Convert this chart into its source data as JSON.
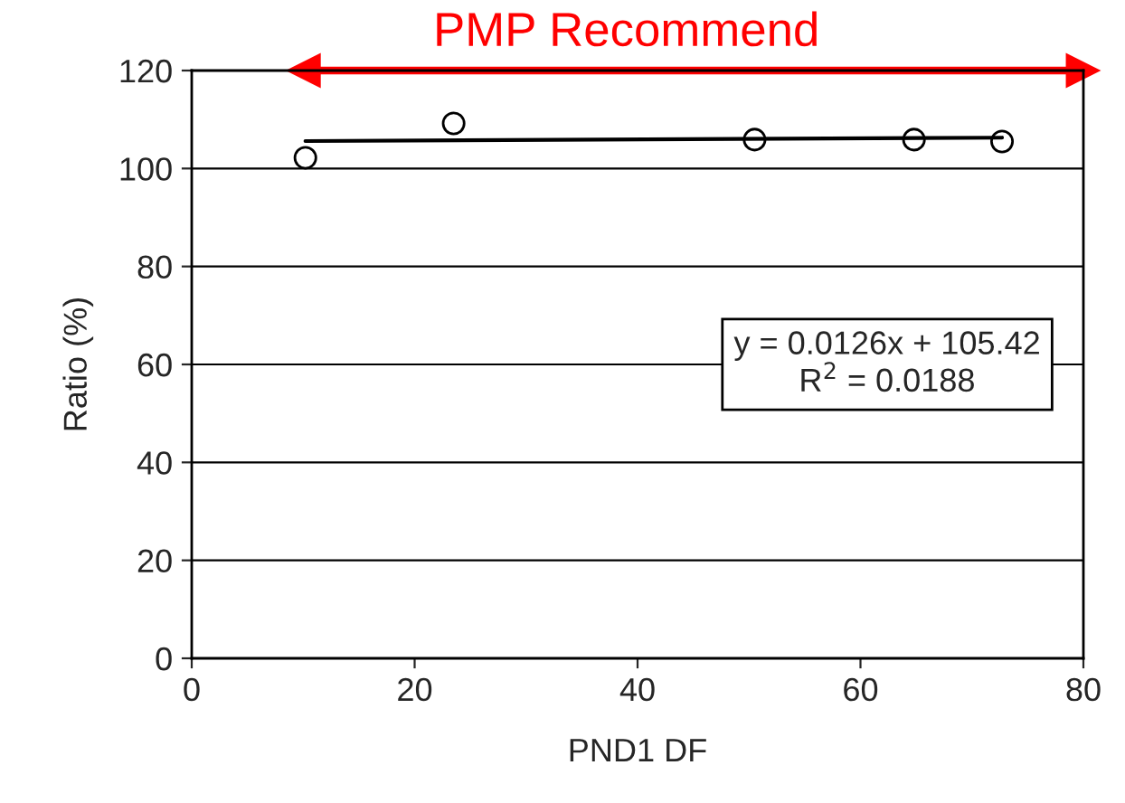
{
  "chart_data": {
    "type": "scatter",
    "xlabel": "PND1 DF",
    "ylabel": "Ratio (%)",
    "series": [
      {
        "color": "#000000",
        "marker": "circle",
        "x": [
          10.2,
          23.5,
          50.5,
          64.8,
          72.7
        ],
        "values": [
          102.2,
          109.2,
          105.9,
          105.9,
          105.5
        ]
      },
      {
        "type": "line",
        "color": "#000000",
        "x": [
          10.2,
          72.7
        ],
        "values": [
          105.6,
          106.3
        ]
      },
      {
        "type": "line",
        "name": "PMP Recommend",
        "color": "#ff0000",
        "marker": "triangle",
        "x": [
          10,
          80
        ],
        "values": [
          120,
          120
        ]
      }
    ],
    "xlim": [
      0,
      80
    ],
    "xticks": [
      0,
      20,
      40,
      60,
      80
    ],
    "ylim": [
      0,
      120
    ],
    "yticks": [
      0,
      20,
      40,
      60,
      80,
      100,
      120
    ],
    "grid": "y",
    "annotations": [
      "y = 0.0126x + 105.42\nR$^{2}$ = 0.0188"
    ]
  }
}
